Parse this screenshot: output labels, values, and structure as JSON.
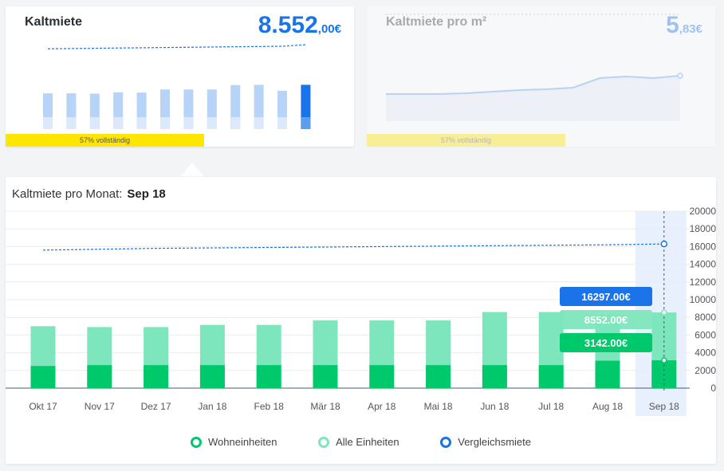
{
  "card1": {
    "title": "Kaltmiete",
    "value_main": "8.552",
    "value_dec": ",00€",
    "progress_label": "57% vollständig",
    "progress_fraction": 0.57,
    "sparkline_bars": [
      6900,
      6900,
      6850,
      7100,
      7050,
      7650,
      7650,
      7650,
      8500,
      8550,
      7400,
      8552
    ],
    "sparkline_line": [
      15500,
      15550,
      15600,
      15650,
      15700,
      15750,
      15800,
      15850,
      15900,
      15950,
      16000,
      16297
    ]
  },
  "card2": {
    "title": "Kaltmiete pro m²",
    "value_main": "5",
    "value_dec": ",83€",
    "progress_label": "57% vollständig",
    "progress_fraction": 0.57,
    "sparkline_line": [
      5.6,
      5.6,
      5.6,
      5.61,
      5.63,
      5.65,
      5.66,
      5.68,
      5.8,
      5.82,
      5.8,
      5.83
    ],
    "sparkline_ref": [
      6.6,
      6.6,
      6.6,
      6.6,
      6.6,
      6.6,
      6.6,
      6.6,
      6.6,
      6.6,
      6.6,
      6.6
    ]
  },
  "main": {
    "title_label": "Kaltmiete pro Monat:",
    "title_period": "Sep 18"
  },
  "legend": {
    "wohneinheiten": "Wohneinheiten",
    "alle_einheiten": "Alle Einheiten",
    "vergleichsmiete": "Vergleichsmiete"
  },
  "colors": {
    "wohneinheiten": "#00c96b",
    "alle_einheiten": "#7ee6bc",
    "vergleichsmiete": "#1a73e8",
    "progress": "#ffe600",
    "highlight": "#e8f0fd"
  },
  "chart_data": {
    "type": "bar",
    "categories": [
      "Okt 17",
      "Nov 17",
      "Dez 17",
      "Jan 18",
      "Feb 18",
      "Mär 18",
      "Apr 18",
      "Mai 18",
      "Jun 18",
      "Jul 18",
      "Aug 18",
      "Sep 18"
    ],
    "series": [
      {
        "name": "Wohneinheiten",
        "type": "bar",
        "values": [
          2500,
          2600,
          2600,
          2600,
          2600,
          2600,
          2600,
          2600,
          2600,
          2600,
          3100,
          3142
        ]
      },
      {
        "name": "Alle Einheiten",
        "type": "bar",
        "values": [
          7000,
          6900,
          6900,
          7150,
          7150,
          7650,
          7650,
          7650,
          8600,
          8600,
          8300,
          8552
        ]
      },
      {
        "name": "Vergleichsmiete",
        "type": "line",
        "values": [
          15600,
          15700,
          15800,
          15850,
          15900,
          15950,
          16000,
          16050,
          16100,
          16150,
          16200,
          16297
        ]
      }
    ],
    "ylim": [
      0,
      20000
    ],
    "yticks": [
      0,
      2000,
      4000,
      6000,
      8000,
      10000,
      12000,
      14000,
      16000,
      18000,
      20000
    ],
    "grid": true,
    "selected_category": "Sep 18",
    "tooltips": [
      "16297.00€",
      "8552.00€",
      "3142.00€"
    ],
    "legend_position": "bottom"
  }
}
